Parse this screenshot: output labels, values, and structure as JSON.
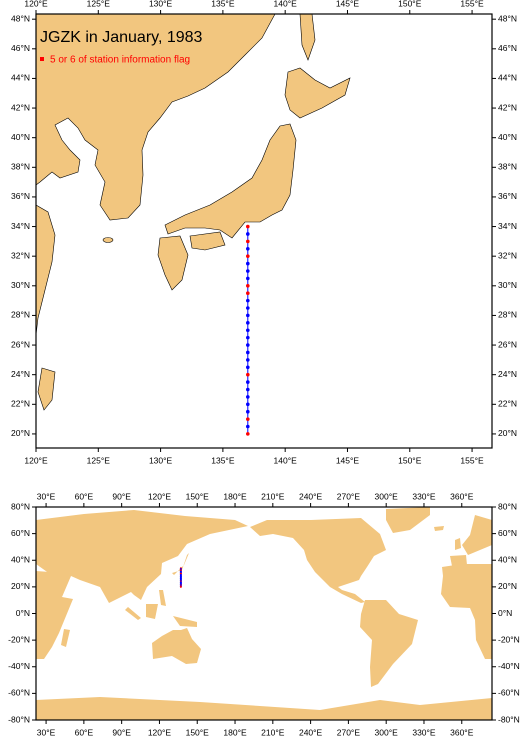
{
  "chart_data": [
    {
      "type": "map",
      "title": "JGZK in January, 1983",
      "legend": "5 or 6 of station information flag",
      "xlim": [
        120,
        156.6
      ],
      "ylim": [
        19.05,
        48.35
      ],
      "xticks": [
        {
          "value": 120,
          "label": "120°E"
        },
        {
          "value": 125,
          "label": "125°E"
        },
        {
          "value": 130,
          "label": "130°E"
        },
        {
          "value": 135,
          "label": "135°E"
        },
        {
          "value": 140,
          "label": "140°E"
        },
        {
          "value": 145,
          "label": "145°E"
        },
        {
          "value": 150,
          "label": "150°E"
        },
        {
          "value": 155,
          "label": "155°E"
        }
      ],
      "yticks": [
        {
          "value": 20,
          "label": "20°N"
        },
        {
          "value": 22,
          "label": "22°N"
        },
        {
          "value": 24,
          "label": "24°N"
        },
        {
          "value": 26,
          "label": "26°N"
        },
        {
          "value": 28,
          "label": "28°N"
        },
        {
          "value": 30,
          "label": "30°N"
        },
        {
          "value": 32,
          "label": "32°N"
        },
        {
          "value": 34,
          "label": "34°N"
        },
        {
          "value": 36,
          "label": "36°N"
        },
        {
          "value": 38,
          "label": "38°N"
        },
        {
          "value": 40,
          "label": "40°N"
        },
        {
          "value": 42,
          "label": "42°N"
        },
        {
          "value": 44,
          "label": "44°N"
        },
        {
          "value": 46,
          "label": "46°N"
        },
        {
          "value": 48,
          "label": "48°N"
        }
      ],
      "land_color": "#f2c67f",
      "points": {
        "lon": 137,
        "lat": [
          34,
          33.5,
          33,
          32.5,
          32,
          31.5,
          31,
          30.5,
          30,
          29.5,
          29,
          28.5,
          28,
          27.5,
          27,
          26.5,
          26,
          25.5,
          25,
          24.5,
          24,
          23.5,
          23,
          22.5,
          22,
          21.5,
          21,
          20.5,
          20
        ],
        "flag": [
          true,
          false,
          true,
          false,
          true,
          false,
          false,
          false,
          true,
          true,
          false,
          false,
          false,
          false,
          false,
          false,
          false,
          false,
          false,
          false,
          true,
          false,
          false,
          false,
          false,
          false,
          true,
          false,
          true
        ],
        "color": "#0000ff",
        "flag_color": "#ff0000"
      }
    },
    {
      "type": "map",
      "xlim": [
        22,
        384
      ],
      "ylim": [
        -80,
        80
      ],
      "xticks": [
        {
          "value": 30,
          "label": "30°E"
        },
        {
          "value": 60,
          "label": "60°E"
        },
        {
          "value": 90,
          "label": "90°E"
        },
        {
          "value": 120,
          "label": "120°E"
        },
        {
          "value": 150,
          "label": "150°E"
        },
        {
          "value": 180,
          "label": "180°E"
        },
        {
          "value": 210,
          "label": "210°E"
        },
        {
          "value": 240,
          "label": "240°E"
        },
        {
          "value": 270,
          "label": "270°E"
        },
        {
          "value": 300,
          "label": "300°E"
        },
        {
          "value": 330,
          "label": "330°E"
        },
        {
          "value": 360,
          "label": "360°E"
        }
      ],
      "yticks": [
        {
          "value": -80,
          "label": "-80°N"
        },
        {
          "value": -60,
          "label": "-60°N"
        },
        {
          "value": -40,
          "label": "-40°N"
        },
        {
          "value": -20,
          "label": "-20°N"
        },
        {
          "value": 0,
          "label": "0°N"
        },
        {
          "value": 20,
          "label": "20°N"
        },
        {
          "value": 40,
          "label": "40°N"
        },
        {
          "value": 60,
          "label": "60°N"
        },
        {
          "value": 80,
          "label": "80°N"
        }
      ],
      "land_color": "#f2c67f",
      "points": {
        "lon": 137,
        "lat": [
          34,
          33.5,
          33,
          32.5,
          32,
          31.5,
          31,
          30.5,
          30,
          29.5,
          29,
          28.5,
          28,
          27.5,
          27,
          26.5,
          26,
          25.5,
          25,
          24.5,
          24,
          23.5,
          23,
          22.5,
          22,
          21.5,
          21,
          20.5,
          20
        ],
        "flag": [
          true,
          false,
          true,
          false,
          true,
          false,
          false,
          false,
          true,
          true,
          false,
          false,
          false,
          false,
          false,
          false,
          false,
          false,
          false,
          false,
          true,
          false,
          false,
          false,
          false,
          false,
          true,
          false,
          true
        ],
        "color": "#0000ff",
        "flag_color": "#ff0000"
      }
    }
  ]
}
